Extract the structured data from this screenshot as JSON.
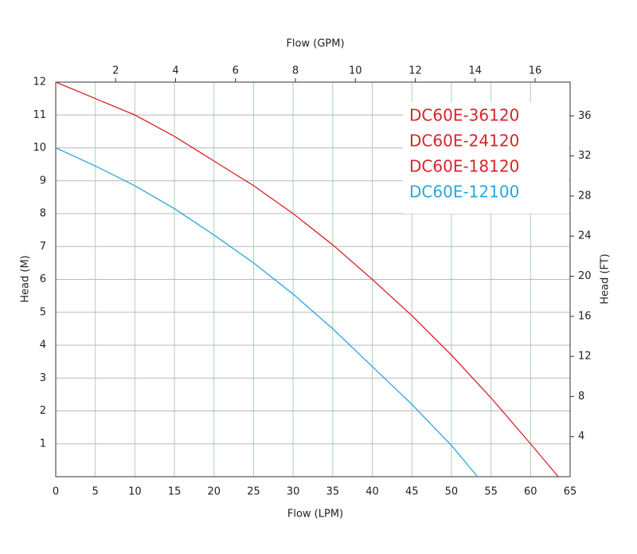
{
  "chart_data": {
    "type": "line",
    "xlabel": "Flow (LPM)",
    "ylabel": "Head (M)",
    "x2label": "Flow (GPM)",
    "y2label": "Head (FT)",
    "xlim": [
      0,
      65
    ],
    "xticks": [
      0,
      5,
      10,
      15,
      20,
      25,
      30,
      35,
      40,
      45,
      50,
      55,
      60,
      65
    ],
    "ylim": [
      0,
      12
    ],
    "yticks": [
      1,
      2,
      3,
      4,
      5,
      6,
      7,
      8,
      9,
      10,
      11,
      12
    ],
    "x2lim": [
      0,
      17.17
    ],
    "x2ticks": [
      2,
      4,
      6,
      8,
      10,
      12,
      14,
      16
    ],
    "y2lim": [
      0,
      39.37
    ],
    "y2ticks": [
      4,
      8,
      12,
      16,
      20,
      24,
      28,
      32,
      36
    ],
    "grid": true,
    "legend": [
      {
        "label": "DC60E-36120",
        "color": "#d9242b"
      },
      {
        "label": "DC60E-24120",
        "color": "#d9242b"
      },
      {
        "label": "DC60E-18120",
        "color": "#d9242b"
      },
      {
        "label": "DC60E-12100",
        "color": "#2aa6dc"
      }
    ],
    "series": [
      {
        "color": "#d9242b",
        "x": [
          0,
          10,
          15,
          20,
          25,
          30,
          35,
          40,
          45,
          50,
          55,
          60,
          63.5
        ],
        "values": [
          12,
          11,
          10.35,
          9.6,
          8.85,
          8,
          7.05,
          6,
          4.9,
          3.7,
          2.4,
          1,
          0
        ]
      },
      {
        "color": "#2aa6dc",
        "x": [
          0,
          5,
          10,
          15,
          20,
          25,
          30,
          35,
          40,
          45,
          50,
          53.3
        ],
        "values": [
          10,
          9.45,
          8.85,
          8.15,
          7.35,
          6.5,
          5.55,
          4.5,
          3.35,
          2.2,
          0.95,
          0
        ]
      }
    ]
  }
}
